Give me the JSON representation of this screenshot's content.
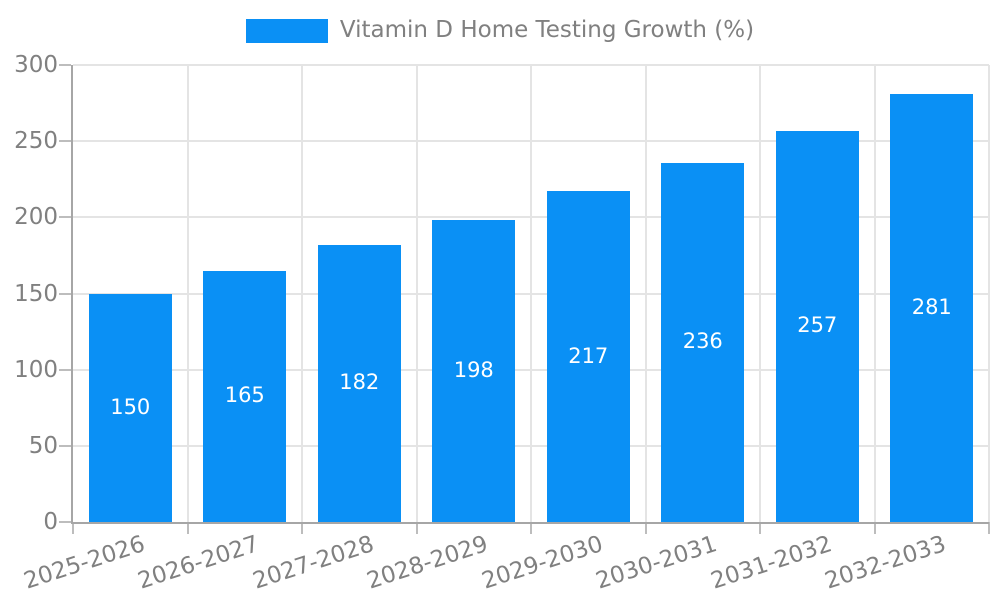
{
  "chart_data": {
    "type": "bar",
    "legend_label": "Vitamin D Home Testing Growth (%)",
    "legend_position": "top-center",
    "categories": [
      "2025-2026",
      "2026-2027",
      "2027-2028",
      "2028-2029",
      "2029-2030",
      "2030-2031",
      "2031-2032",
      "2032-2033"
    ],
    "values": [
      150,
      165,
      182,
      198,
      217,
      236,
      257,
      281
    ],
    "xlabel": "",
    "ylabel": "",
    "ylim": [
      0,
      300
    ],
    "yticks": [
      0,
      50,
      100,
      150,
      200,
      250,
      300
    ],
    "grid": true,
    "value_labels": {
      "visible": true,
      "position": "inside-center",
      "color": "#ffffff"
    }
  },
  "colors": {
    "bar": "#0a90f5",
    "grid": "#e4e4e4",
    "axis": "#a6a6a6",
    "tick": "#bdbdbd",
    "label_text": "#808080",
    "background": "#ffffff"
  }
}
